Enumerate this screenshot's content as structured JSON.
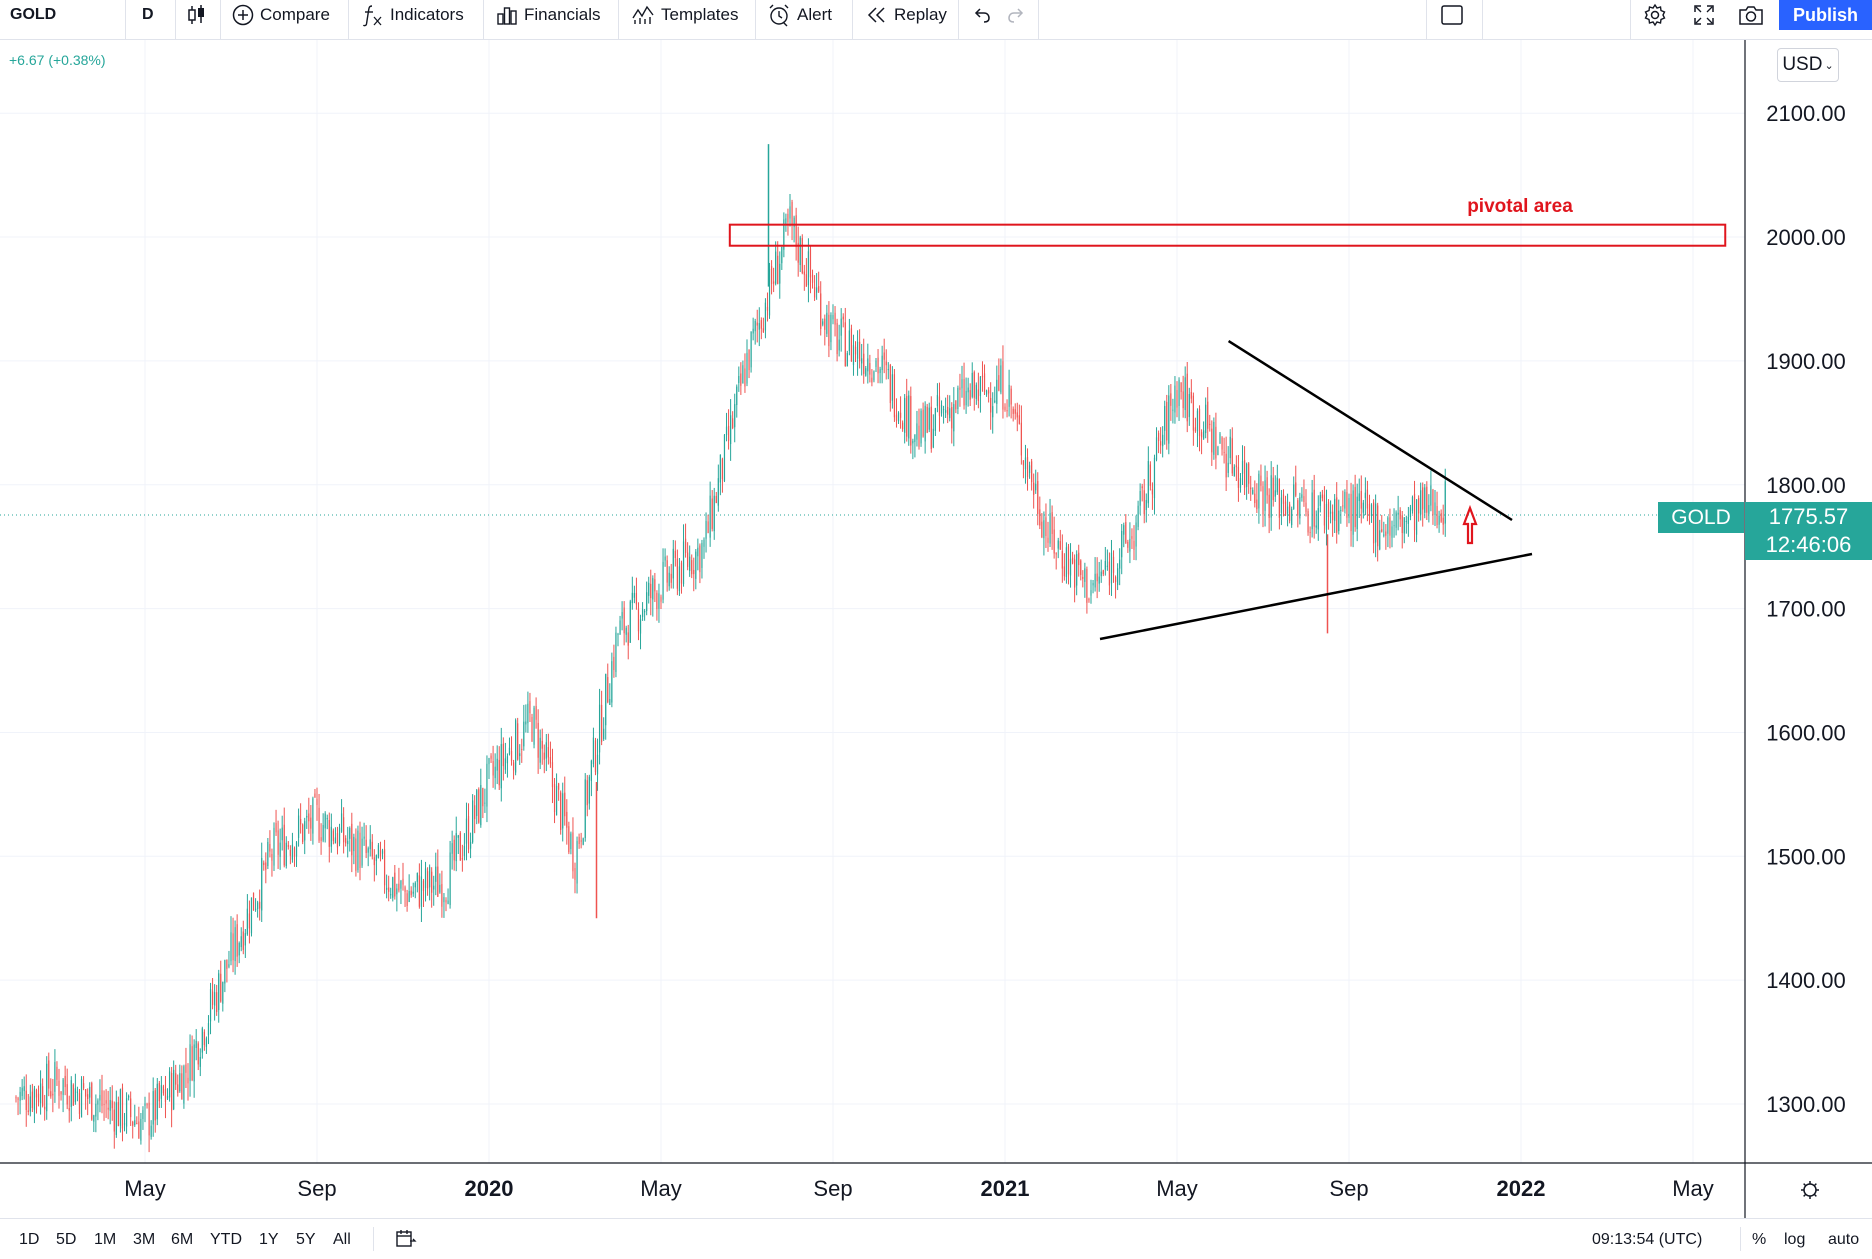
{
  "toolbar": {
    "symbol": "GOLD",
    "interval": "D",
    "compare": "Compare",
    "indicators": "Indicators",
    "financials": "Financials",
    "templates": "Templates",
    "alert": "Alert",
    "replay": "Replay",
    "publish": "Publish",
    "icons": [
      "candles-icon",
      "plus-circle-icon",
      "fx-icon",
      "financials-icon",
      "templates-icon",
      "alarm-icon",
      "replay-icon",
      "undo-icon",
      "redo-icon",
      "layout-icon",
      "gear-icon",
      "fullscreen-icon",
      "camera-icon"
    ]
  },
  "header": {
    "change": "+6.67 (+0.38%)"
  },
  "price_scale": {
    "currency": "USD",
    "symbol_tag": "GOLD",
    "last_price": "1775.57",
    "countdown": "12:46:06"
  },
  "annotations": {
    "zone_label": "pivotal area"
  },
  "colors": {
    "up": "#26a69a",
    "down": "#ef5350",
    "accent": "#2962ff",
    "annotation": "#e0151d",
    "grid": "#f0f3fa"
  },
  "chart_data": {
    "type": "candlestick",
    "symbol": "GOLD",
    "interval": "D",
    "x_tick_labels": [
      "May",
      "Sep",
      "2020",
      "May",
      "Sep",
      "2021",
      "May",
      "Sep",
      "2022",
      "May"
    ],
    "y_ticks": [
      1300,
      1400,
      1500,
      1600,
      1700,
      1800,
      1900,
      2000,
      2100
    ],
    "y_tick_labels": [
      "1300.00",
      "1400.00",
      "1500.00",
      "1600.00",
      "1700.00",
      "1800.00",
      "1900.00",
      "2000.00",
      "2100.00"
    ],
    "ylim": [
      1255,
      2160
    ],
    "grid": true,
    "last_price": 1775.57,
    "weekly_close_path": [
      {
        "t": "2019-02",
        "p": 1305
      },
      {
        "t": "2019-03",
        "p": 1318
      },
      {
        "t": "2019-04",
        "p": 1300
      },
      {
        "t": "2019-05",
        "p": 1285
      },
      {
        "t": "2019-06",
        "p": 1330
      },
      {
        "t": "2019-07",
        "p": 1420
      },
      {
        "t": "2019-08",
        "p": 1505
      },
      {
        "t": "2019-09",
        "p": 1530
      },
      {
        "t": "2019-10",
        "p": 1505
      },
      {
        "t": "2019-11",
        "p": 1470
      },
      {
        "t": "2019-12",
        "p": 1480
      },
      {
        "t": "2020-01",
        "p": 1560
      },
      {
        "t": "2020-02",
        "p": 1610
      },
      {
        "t": "2020-03",
        "p": 1500
      },
      {
        "t": "2020-04",
        "p": 1680
      },
      {
        "t": "2020-05",
        "p": 1720
      },
      {
        "t": "2020-06",
        "p": 1750
      },
      {
        "t": "2020-07",
        "p": 1900
      },
      {
        "t": "2020-08",
        "p": 2010
      },
      {
        "t": "2020-09",
        "p": 1920
      },
      {
        "t": "2020-10",
        "p": 1900
      },
      {
        "t": "2020-11",
        "p": 1840
      },
      {
        "t": "2020-12",
        "p": 1870
      },
      {
        "t": "2021-01",
        "p": 1880
      },
      {
        "t": "2021-02",
        "p": 1760
      },
      {
        "t": "2021-03",
        "p": 1715
      },
      {
        "t": "2021-04",
        "p": 1760
      },
      {
        "t": "2021-05",
        "p": 1880
      },
      {
        "t": "2021-06",
        "p": 1830
      },
      {
        "t": "2021-07",
        "p": 1795
      },
      {
        "t": "2021-08",
        "p": 1780
      },
      {
        "t": "2021-09",
        "p": 1780
      },
      {
        "t": "2021-10",
        "p": 1765
      },
      {
        "t": "2021-11",
        "p": 1785
      }
    ],
    "notable_levels": {
      "high": 2075,
      "low_2019": 1275,
      "low_2020_crash": 1450,
      "triangle_low": 1677,
      "aug_2021_flash_low": 1680
    },
    "drawings": {
      "resistance_zone": {
        "label": "pivotal area",
        "from": "2020-07",
        "to": "2022-06",
        "y_top": 2010,
        "y_bottom": 1993
      },
      "upper_trendline": [
        {
          "t": "2021-06",
          "p": 1916
        },
        {
          "t": "2021-12",
          "p": 1768
        }
      ],
      "lower_trendline": [
        {
          "t": "2021-03",
          "p": 1676
        },
        {
          "t": "2022-01",
          "p": 1738
        }
      ],
      "arrow": {
        "direction": "up",
        "t": "2021-11",
        "p": 1770
      }
    }
  },
  "bottombar": {
    "ranges": [
      "1D",
      "5D",
      "1M",
      "3M",
      "6M",
      "YTD",
      "1Y",
      "5Y",
      "All"
    ],
    "clock": "09:13:54 (UTC)",
    "percent": "%",
    "log": "log",
    "auto": "auto"
  }
}
